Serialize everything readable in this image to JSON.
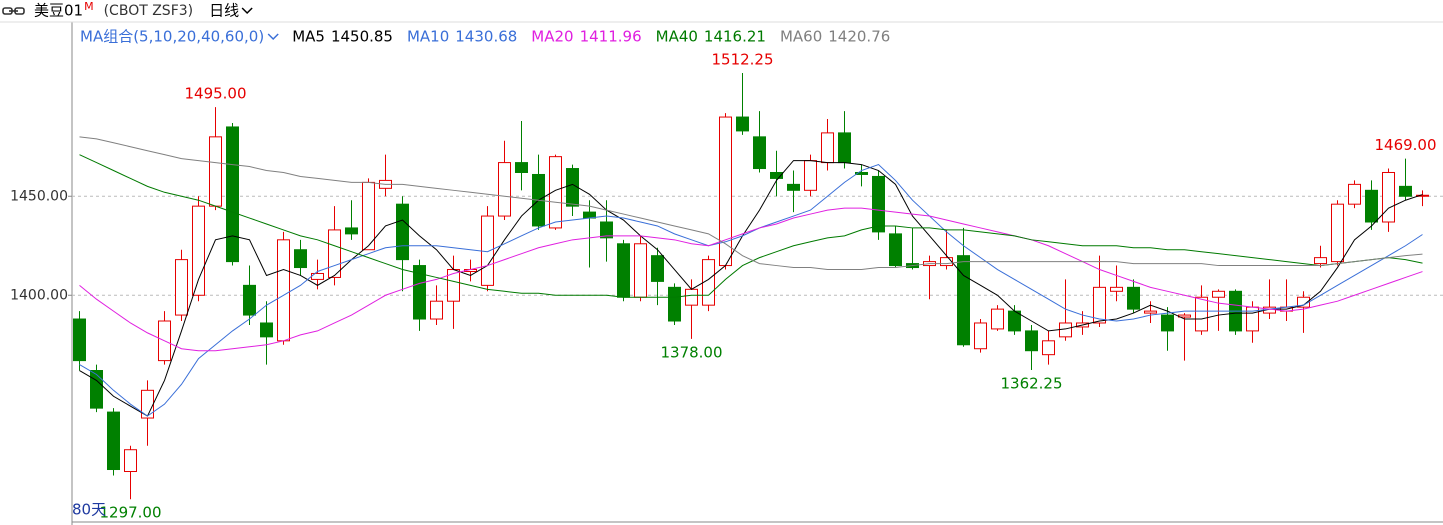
{
  "chart_data": {
    "type": "candlestick",
    "header": {
      "symbol": "美豆01",
      "superscript": "M",
      "code": "(CBOT  ZSF3)",
      "period": "日线"
    },
    "legend_title": "MA组合(5,10,20,40,60,0)",
    "window_label": "80天",
    "up_color": "#e60000",
    "down_color": "#008000",
    "ylim": [
      1286,
      1538
    ],
    "yticks": [
      {
        "value": 1400,
        "label": "1400.00"
      },
      {
        "value": 1450,
        "label": "1450.00"
      }
    ],
    "grid": true,
    "open": [
      1388,
      1362,
      1341,
      1311,
      1338,
      1367,
      1390,
      1400,
      1445,
      1485,
      1405,
      1386,
      1377,
      1423,
      1408,
      1409,
      1434,
      1423,
      1454,
      1446,
      1415,
      1388,
      1397,
      1412,
      1405,
      1440,
      1467,
      1461,
      1434,
      1464,
      1442,
      1437,
      1426,
      1399,
      1420,
      1404,
      1395,
      1395,
      1415,
      1490,
      1480,
      1462,
      1456,
      1453,
      1467,
      1482,
      1462,
      1460,
      1431,
      1416,
      1415,
      1415,
      1420,
      1373,
      1383,
      1392,
      1382,
      1370,
      1379,
      1384,
      1386,
      1402,
      1404,
      1391,
      1390,
      1389,
      1382,
      1399,
      1402,
      1382,
      1391,
      1392,
      1394,
      1416,
      1417,
      1446,
      1453,
      1437,
      1455,
      1450
    ],
    "high": [
      1392,
      1365,
      1343,
      1324,
      1357,
      1392,
      1423,
      1450,
      1495,
      1487,
      1415,
      1397,
      1432,
      1428,
      1418,
      1445,
      1448,
      1459,
      1471,
      1450,
      1418,
      1405,
      1420,
      1418,
      1445,
      1478,
      1488,
      1471,
      1471,
      1466,
      1448,
      1448,
      1428,
      1430,
      1424,
      1406,
      1408,
      1420,
      1492,
      1512.25,
      1493,
      1473,
      1463,
      1471,
      1489,
      1493,
      1466,
      1463,
      1435,
      1434,
      1420,
      1433,
      1434,
      1388,
      1395,
      1395,
      1385,
      1382,
      1408,
      1392,
      1420,
      1415,
      1408,
      1397,
      1394,
      1391,
      1405,
      1403,
      1403,
      1397,
      1408,
      1408,
      1402,
      1425,
      1448,
      1458,
      1458,
      1464,
      1469,
      1453
    ],
    "low": [
      1362,
      1341,
      1309,
      1297,
      1324,
      1365,
      1387,
      1397,
      1443,
      1415,
      1385,
      1365,
      1375,
      1410,
      1403,
      1405,
      1428,
      1423,
      1450,
      1402,
      1382,
      1385,
      1383,
      1407,
      1402,
      1438,
      1453,
      1433,
      1433,
      1440,
      1414,
      1417,
      1397,
      1397,
      1395,
      1385,
      1378,
      1392,
      1413,
      1481,
      1462,
      1450,
      1442,
      1450,
      1463,
      1464,
      1455,
      1428,
      1414,
      1413,
      1398,
      1413,
      1374,
      1371,
      1382,
      1380,
      1362.25,
      1365,
      1377,
      1380,
      1384,
      1397,
      1391,
      1386,
      1372,
      1367,
      1380,
      1382,
      1380,
      1376,
      1388,
      1387,
      1381,
      1414,
      1415,
      1444,
      1433,
      1432,
      1448,
      1445
    ],
    "close": [
      1367,
      1343,
      1312,
      1322,
      1352,
      1387,
      1418,
      1445,
      1480,
      1417,
      1390,
      1379,
      1428,
      1414,
      1411,
      1433,
      1431,
      1457,
      1458,
      1418,
      1388,
      1397,
      1413,
      1413,
      1440,
      1467,
      1462,
      1435,
      1470,
      1445,
      1439,
      1429,
      1399,
      1426,
      1407,
      1387,
      1403,
      1418,
      1490,
      1483,
      1464,
      1459,
      1453,
      1468,
      1482,
      1467,
      1461,
      1432,
      1415,
      1414,
      1417,
      1419,
      1375,
      1386,
      1393,
      1382,
      1372,
      1377,
      1386,
      1386,
      1404,
      1404,
      1393,
      1392,
      1382,
      1390,
      1399,
      1402,
      1382,
      1394,
      1394,
      1394,
      1399,
      1419,
      1446,
      1456,
      1437,
      1462,
      1450,
      1450.5
    ],
    "annotations": [
      {
        "value": 1495,
        "label": "1495.00"
      },
      {
        "value": 1512.25,
        "label": "1512.25"
      },
      {
        "value": 1469,
        "label": "1469.00"
      },
      {
        "value": 1297,
        "label": "1297.00"
      },
      {
        "value": 1378,
        "label": "1378.00"
      },
      {
        "value": 1362.25,
        "label": "1362.25"
      }
    ],
    "lines": [
      {
        "name": "MA5",
        "color": "#000000",
        "last": 1450.85,
        "values": [
          1362,
          1357,
          1349,
          1344,
          1339,
          1357,
          1382,
          1408,
          1428,
          1430,
          1428,
          1410,
          1413,
          1410,
          1405,
          1410,
          1418,
          1425,
          1435,
          1438,
          1430,
          1423,
          1413,
          1410,
          1415,
          1428,
          1440,
          1448,
          1453,
          1456,
          1451,
          1443,
          1438,
          1430,
          1423,
          1413,
          1403,
          1408,
          1415,
          1430,
          1443,
          1458,
          1468,
          1468,
          1467,
          1467,
          1466,
          1463,
          1456,
          1440,
          1430,
          1420,
          1410,
          1405,
          1400,
          1392,
          1387,
          1382,
          1383,
          1385,
          1387,
          1388,
          1391,
          1395,
          1392,
          1388,
          1388,
          1390,
          1391,
          1391,
          1393,
          1393,
          1395,
          1402,
          1414,
          1428,
          1435,
          1444,
          1448,
          1450.85
        ]
      },
      {
        "name": "MA10",
        "color": "#3a6fd8",
        "last": 1430.68,
        "values": [
          1365,
          1360,
          1352,
          1345,
          1339,
          1345,
          1355,
          1368,
          1375,
          1382,
          1388,
          1395,
          1400,
          1405,
          1412,
          1415,
          1418,
          1421,
          1424,
          1425,
          1425,
          1425,
          1424,
          1423,
          1422,
          1426,
          1430,
          1434,
          1437,
          1438,
          1439,
          1440,
          1439,
          1437,
          1435,
          1431,
          1428,
          1425,
          1427,
          1430,
          1434,
          1437,
          1440,
          1443,
          1450,
          1457,
          1463,
          1466,
          1458,
          1448,
          1440,
          1432,
          1425,
          1419,
          1413,
          1408,
          1403,
          1398,
          1393,
          1390,
          1388,
          1387,
          1388,
          1390,
          1391,
          1392,
          1392,
          1392,
          1392,
          1392,
          1393,
          1394,
          1395,
          1400,
          1405,
          1410,
          1415,
          1420,
          1425,
          1430.68
        ]
      },
      {
        "name": "MA20",
        "color": "#e020e0",
        "last": 1411.96,
        "values": [
          1405,
          1398,
          1392,
          1386,
          1381,
          1377,
          1373,
          1372,
          1372,
          1373,
          1374,
          1375,
          1377,
          1380,
          1382,
          1386,
          1390,
          1395,
          1400,
          1403,
          1406,
          1408,
          1411,
          1413,
          1415,
          1418,
          1421,
          1424,
          1426,
          1428,
          1429,
          1430,
          1430,
          1430,
          1429,
          1428,
          1426,
          1425,
          1428,
          1431,
          1434,
          1436,
          1439,
          1441,
          1443,
          1444,
          1444,
          1443,
          1442,
          1441,
          1440,
          1438,
          1436,
          1434,
          1432,
          1430,
          1428,
          1425,
          1421,
          1417,
          1413,
          1410,
          1407,
          1404,
          1402,
          1400,
          1398,
          1396,
          1395,
          1394,
          1393,
          1392,
          1393,
          1395,
          1397,
          1400,
          1403,
          1406,
          1409,
          1411.96
        ]
      },
      {
        "name": "MA40",
        "color": "#007a00",
        "last": 1416.21,
        "values": [
          1471,
          1467,
          1463,
          1459,
          1455,
          1452,
          1450,
          1448,
          1445,
          1442,
          1439,
          1436,
          1433,
          1430,
          1428,
          1425,
          1422,
          1419,
          1416,
          1413,
          1411,
          1409,
          1407,
          1405,
          1403,
          1402,
          1401,
          1401,
          1400,
          1400,
          1400,
          1400,
          1399,
          1399,
          1399,
          1399,
          1400,
          1400,
          1408,
          1415,
          1419,
          1422,
          1425,
          1427,
          1429,
          1430,
          1433,
          1435,
          1435,
          1434,
          1434,
          1433,
          1433,
          1432,
          1431,
          1430,
          1428,
          1427,
          1426,
          1425,
          1425,
          1425,
          1424,
          1424,
          1423,
          1423,
          1422,
          1421,
          1420,
          1419,
          1418,
          1417,
          1416,
          1415,
          1416,
          1417,
          1418,
          1419,
          1418,
          1416.21
        ]
      },
      {
        "name": "MA60",
        "color": "#808080",
        "last": 1420.76,
        "values": [
          1480,
          1479,
          1477,
          1475,
          1473,
          1471,
          1469,
          1468,
          1467,
          1466,
          1465,
          1463,
          1462,
          1460,
          1459,
          1458,
          1457,
          1457,
          1456,
          1456,
          1455,
          1454,
          1453,
          1452,
          1451,
          1450,
          1449,
          1448,
          1447,
          1446,
          1445,
          1443,
          1441,
          1439,
          1437,
          1435,
          1433,
          1431,
          1426,
          1420,
          1416,
          1415,
          1414,
          1414,
          1413,
          1413,
          1413,
          1414,
          1414,
          1415,
          1416,
          1416,
          1417,
          1417,
          1417,
          1417,
          1417,
          1417,
          1417,
          1417,
          1417,
          1417,
          1416,
          1416,
          1416,
          1416,
          1416,
          1415,
          1415,
          1415,
          1415,
          1415,
          1415,
          1415,
          1416,
          1417,
          1418,
          1419,
          1420,
          1420.76
        ]
      }
    ]
  }
}
